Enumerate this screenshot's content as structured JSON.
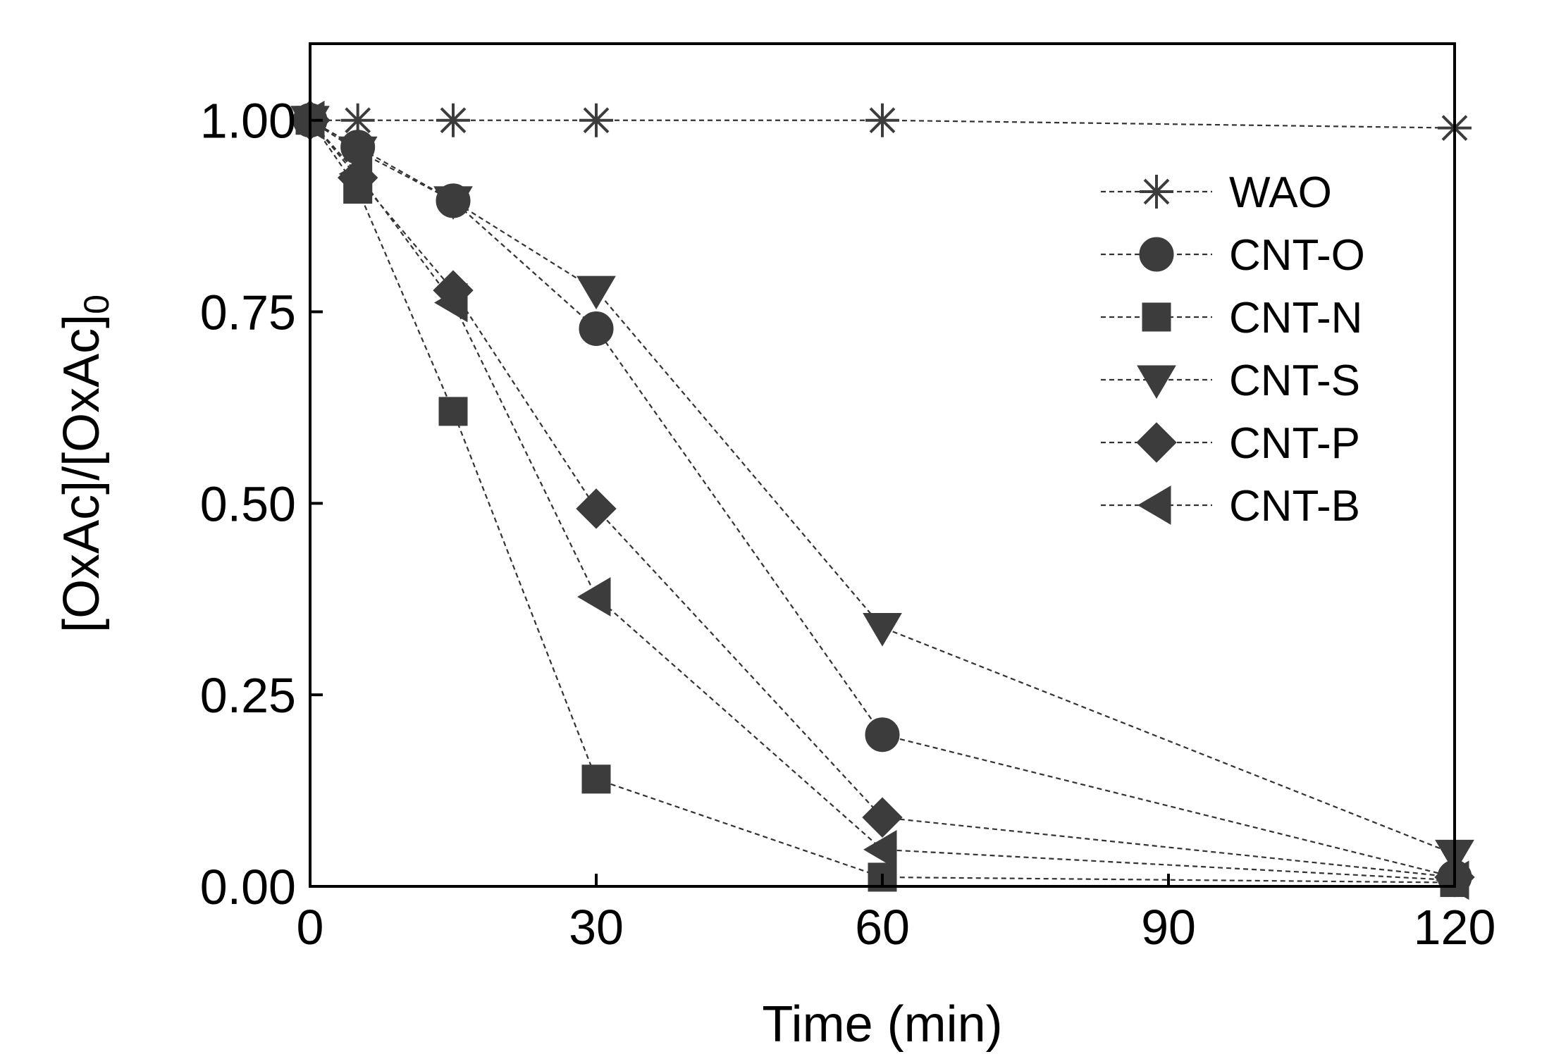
{
  "chart_data": {
    "type": "line",
    "title": "",
    "xlabel": "Time (min)",
    "ylabel_main": "[OxAc]/[OxAc]",
    "ylabel_subscript": "0",
    "xlim": [
      0,
      120
    ],
    "ylim": [
      0,
      1.1
    ],
    "xticks": [
      0,
      30,
      60,
      90,
      120
    ],
    "xtick_labels": [
      "0",
      "30",
      "60",
      "90",
      "120"
    ],
    "yticks": [
      0,
      0.25,
      0.5,
      0.75,
      1.0
    ],
    "ytick_labels": [
      "0.00",
      "0.25",
      "0.50",
      "0.75",
      "1.00"
    ],
    "legend_position": "top-right",
    "colors": {
      "marker": "#3c3c3c",
      "line": "#333333",
      "axis": "#000000"
    },
    "series": [
      {
        "name": "WAO",
        "marker": "star",
        "x": [
          0,
          5,
          15,
          30,
          60,
          120
        ],
        "y": [
          1.0,
          1.0,
          1.0,
          1.0,
          1.0,
          0.99
        ]
      },
      {
        "name": "CNT-O",
        "marker": "circle",
        "x": [
          0,
          5,
          15,
          30,
          60,
          120
        ],
        "y": [
          1.0,
          0.965,
          0.895,
          0.728,
          0.198,
          0.012
        ]
      },
      {
        "name": "CNT-N",
        "marker": "square",
        "x": [
          0,
          5,
          15,
          30,
          60,
          120
        ],
        "y": [
          1.0,
          0.91,
          0.62,
          0.14,
          0.012,
          0.005
        ]
      },
      {
        "name": "CNT-S",
        "marker": "triangle-down",
        "x": [
          0,
          5,
          15,
          30,
          60,
          120
        ],
        "y": [
          1.0,
          0.96,
          0.895,
          0.778,
          0.338,
          0.042
        ]
      },
      {
        "name": "CNT-P",
        "marker": "diamond",
        "x": [
          0,
          5,
          15,
          30,
          60,
          120
        ],
        "y": [
          1.0,
          0.925,
          0.778,
          0.493,
          0.09,
          0.012
        ]
      },
      {
        "name": "CNT-B",
        "marker": "triangle-left",
        "x": [
          0,
          5,
          15,
          30,
          60,
          120
        ],
        "y": [
          1.0,
          0.93,
          0.762,
          0.378,
          0.048,
          0.008
        ]
      }
    ]
  }
}
